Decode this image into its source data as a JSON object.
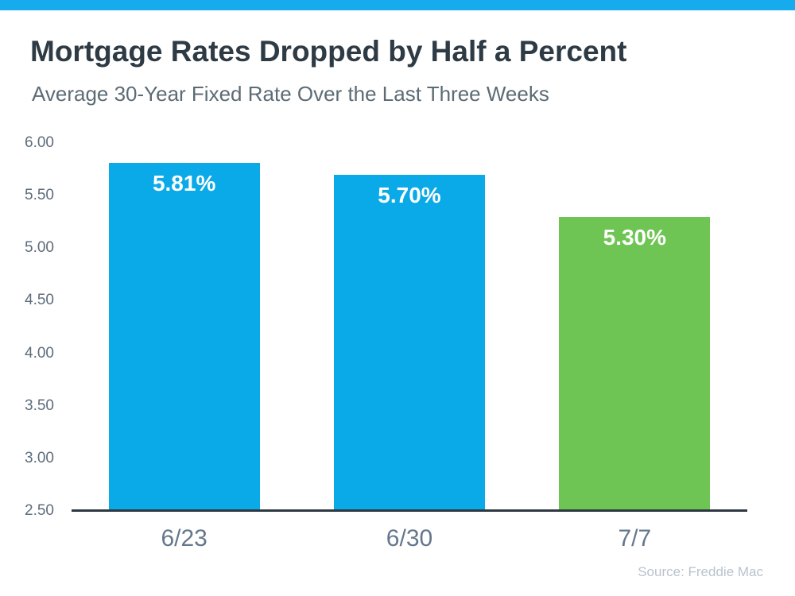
{
  "page": {
    "title": "Mortgage Rates Dropped by Half a Percent",
    "subtitle": "Average 30-Year Fixed Rate Over the Last Three Weeks",
    "source": "Source: Freddie Mac",
    "accent_strip_color": "#16ABEC",
    "axis_color": "#2E3842",
    "title_color": "#2E3B45",
    "subtitle_color": "#5C6B74"
  },
  "chart_data": {
    "type": "bar",
    "title": "Mortgage Rates Dropped by Half a Percent",
    "subtitle": "Average 30-Year Fixed Rate Over the Last Three Weeks",
    "categories": [
      "6/23",
      "6/30",
      "7/7"
    ],
    "values": [
      5.81,
      5.7,
      5.3
    ],
    "bar_labels": [
      "5.81%",
      "5.70%",
      "5.30%"
    ],
    "bar_colors": [
      "#0AA9E8",
      "#0AA9E8",
      "#6EC553"
    ],
    "xlabel": "",
    "ylabel": "",
    "ylim": [
      2.5,
      6.0
    ],
    "ytick_step": 0.5,
    "yticks": [
      "6.00",
      "5.50",
      "5.00",
      "4.50",
      "4.00",
      "3.50",
      "3.00",
      "2.50"
    ],
    "grid": false,
    "legend_position": "none",
    "source": "Source: Freddie Mac"
  }
}
